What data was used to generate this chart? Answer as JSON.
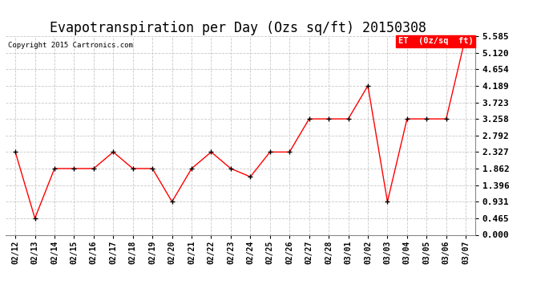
{
  "title": "Evapotranspiration per Day (Ozs sq/ft) 20150308",
  "copyright": "Copyright 2015 Cartronics.com",
  "legend_label": "ET  (0z/sq  ft)",
  "x_labels": [
    "02/12",
    "02/13",
    "02/14",
    "02/15",
    "02/16",
    "02/17",
    "02/18",
    "02/19",
    "02/20",
    "02/21",
    "02/22",
    "02/23",
    "02/24",
    "02/25",
    "02/26",
    "02/27",
    "02/28",
    "03/01",
    "03/02",
    "03/03",
    "03/04",
    "03/05",
    "03/06",
    "03/07"
  ],
  "y_values": [
    2.327,
    0.465,
    1.862,
    1.862,
    1.862,
    2.327,
    1.862,
    1.862,
    0.931,
    1.862,
    2.327,
    1.862,
    1.63,
    2.327,
    2.327,
    3.258,
    3.258,
    3.258,
    4.189,
    0.931,
    3.258,
    3.258,
    3.258,
    5.585
  ],
  "line_color": "red",
  "marker": "+",
  "marker_color": "black",
  "grid_color": "#c8c8c8",
  "background_color": "white",
  "y_ticks": [
    0.0,
    0.465,
    0.931,
    1.396,
    1.862,
    2.327,
    2.792,
    3.258,
    3.723,
    4.189,
    4.654,
    5.12,
    5.585
  ],
  "ylim": [
    0.0,
    5.585
  ],
  "title_fontsize": 12,
  "legend_bg": "red",
  "legend_text_color": "white"
}
